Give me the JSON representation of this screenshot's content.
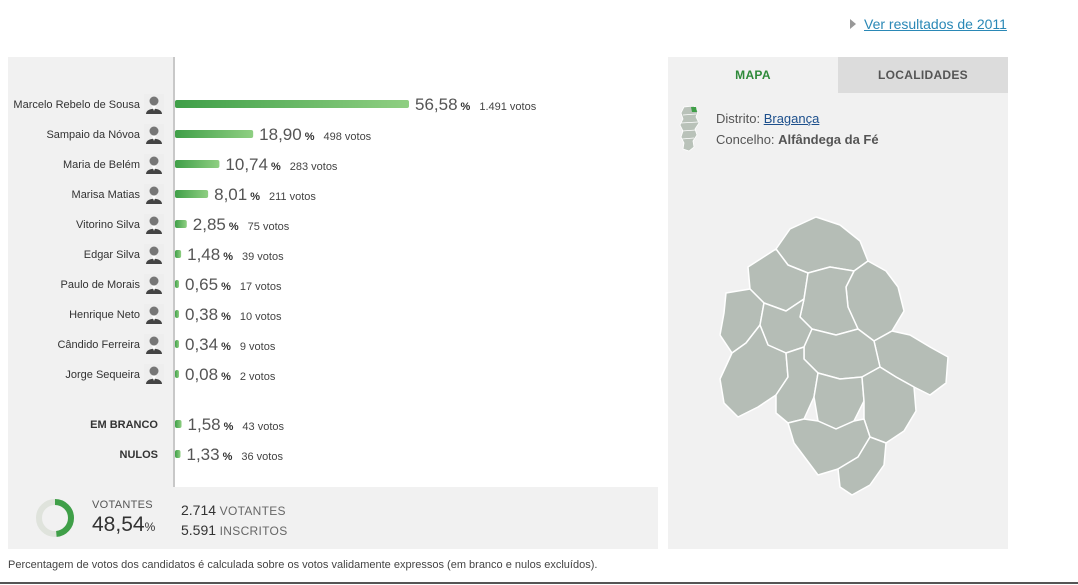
{
  "header": {
    "prev_results_link": "Ver resultados de 2011"
  },
  "chart_data": {
    "type": "bar",
    "orientation": "horizontal",
    "categories": [
      "Marcelo Rebelo de Sousa",
      "Sampaio da Nóvoa",
      "Maria de Belém",
      "Marisa Matias",
      "Vitorino Silva",
      "Edgar Silva",
      "Paulo de Morais",
      "Henrique Neto",
      "Cândido Ferreira",
      "Jorge Sequeira",
      "EM BRANCO",
      "NULOS"
    ],
    "values": [
      56.58,
      18.9,
      10.74,
      8.01,
      2.85,
      1.48,
      0.65,
      0.38,
      0.34,
      0.08,
      1.58,
      1.33
    ],
    "value_labels": [
      "56,58",
      "18,90",
      "10,74",
      "8,01",
      "2,85",
      "1,48",
      "0,65",
      "0,38",
      "0,34",
      "0,08",
      "1,58",
      "1,33"
    ],
    "votes": [
      "1.491 votos",
      "498 votos",
      "283 votos",
      "211 votos",
      "75 votos",
      "39 votos",
      "17 votos",
      "10 votos",
      "9 votos",
      "2 votos",
      "43 votos",
      "36 votos"
    ],
    "percent_sign": "%",
    "xlim": [
      0,
      100
    ],
    "grid": false,
    "bar_color": "#3f9f48"
  },
  "summary": {
    "turnout_label": "VOTANTES",
    "turnout_value": "48,54",
    "turnout_unit": "%",
    "turnout_fraction": 0.4854,
    "voters_count": "2.714",
    "voters_label": "VOTANTES",
    "registered_count": "5.591",
    "registered_label": "INSCRITOS"
  },
  "map_panel": {
    "tabs": [
      "MAPA",
      "LOCALIDADES"
    ],
    "active_tab": "MAPA",
    "district_label": "Distrito:",
    "district_value": "Bragança",
    "municipality_label": "Concelho:",
    "municipality_value": "Alfândega da Fé",
    "map_fill": "#b5bdb6",
    "map_stroke": "#ffffff"
  },
  "footnote": "Percentagem de votos dos candidatos é calculada sobre os votos validamente expressos (em branco e nulos excluídos).",
  "colors": {
    "accent_green": "#3f9f48",
    "link_blue": "#2a88b6"
  }
}
